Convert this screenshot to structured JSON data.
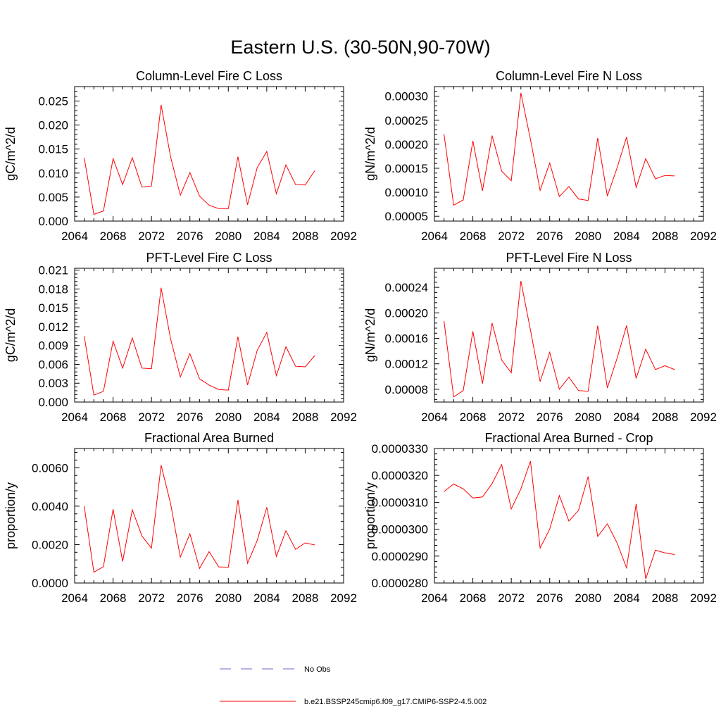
{
  "figure": {
    "title": "Eastern U.S. (30-50N,90-70W)",
    "line_color": "#ff0000",
    "obs_color": "#6a6ac8"
  },
  "legend": {
    "items": [
      {
        "label": "No Obs",
        "style": "dashed",
        "color": "#6a6ac8"
      },
      {
        "label": "b.e21.BSSP245cmip6.f09_g17.CMIP6-SSP2-4.5.002",
        "style": "solid",
        "color": "#ff0000"
      }
    ]
  },
  "chart_data": [
    {
      "type": "line",
      "title": "Column-Level Fire C Loss",
      "ylabel": "gC/m^2/d",
      "xlim": [
        2064,
        2092
      ],
      "ylim": [
        0.0,
        0.028
      ],
      "x_ticks": [
        2064,
        2068,
        2072,
        2076,
        2080,
        2084,
        2088,
        2092
      ],
      "y_ticks": [
        "0.000",
        "0.005",
        "0.010",
        "0.015",
        "0.020",
        "0.025"
      ],
      "y_tick_values": [
        0.0,
        0.005,
        0.01,
        0.015,
        0.02,
        0.025
      ],
      "x": [
        2065,
        2066,
        2067,
        2068,
        2069,
        2070,
        2071,
        2072,
        2073,
        2074,
        2075,
        2076,
        2077,
        2078,
        2079,
        2080,
        2081,
        2082,
        2083,
        2084,
        2085,
        2086,
        2087,
        2088,
        2089
      ],
      "series": [
        {
          "values": [
            0.0132,
            0.0014,
            0.0021,
            0.013,
            0.0076,
            0.0132,
            0.0071,
            0.0073,
            0.0242,
            0.0133,
            0.0054,
            0.0101,
            0.0052,
            0.0033,
            0.0026,
            0.0026,
            0.0134,
            0.0034,
            0.0111,
            0.0145,
            0.0057,
            0.0117,
            0.0076,
            0.0075,
            0.0105
          ]
        }
      ]
    },
    {
      "type": "line",
      "title": "Column-Level Fire N Loss",
      "ylabel": "gN/m^2/d",
      "xlim": [
        2064,
        2092
      ],
      "ylim": [
        4e-05,
        0.00032
      ],
      "x_ticks": [
        2064,
        2068,
        2072,
        2076,
        2080,
        2084,
        2088,
        2092
      ],
      "y_ticks": [
        "0.00005",
        "0.00010",
        "0.00015",
        "0.00020",
        "0.00025",
        "0.00030"
      ],
      "y_tick_values": [
        5e-05,
        0.0001,
        0.00015,
        0.0002,
        0.00025,
        0.0003
      ],
      "x": [
        2065,
        2066,
        2067,
        2068,
        2069,
        2070,
        2071,
        2072,
        2073,
        2074,
        2075,
        2076,
        2077,
        2078,
        2079,
        2080,
        2081,
        2082,
        2083,
        2084,
        2085,
        2086,
        2087,
        2088,
        2089
      ],
      "series": [
        {
          "values": [
            0.000221,
            7.3e-05,
            8.4e-05,
            0.000207,
            0.000103,
            0.000218,
            0.000144,
            0.000124,
            0.000307,
            0.00021,
            0.000104,
            0.000161,
            9.1e-05,
            0.000112,
            8.6e-05,
            8.3e-05,
            0.000213,
            9.2e-05,
            0.00015,
            0.000215,
            0.00011,
            0.00017,
            0.000128,
            0.000135,
            0.000134
          ]
        }
      ]
    },
    {
      "type": "line",
      "title": "PFT-Level Fire C Loss",
      "ylabel": "gC/m^2/d",
      "xlim": [
        2064,
        2092
      ],
      "ylim": [
        0.0,
        0.0213
      ],
      "x_ticks": [
        2064,
        2068,
        2072,
        2076,
        2080,
        2084,
        2088,
        2092
      ],
      "y_ticks": [
        "0.000",
        "0.003",
        "0.006",
        "0.009",
        "0.012",
        "0.015",
        "0.018",
        "0.021"
      ],
      "y_tick_values": [
        0.0,
        0.003,
        0.006,
        0.009,
        0.012,
        0.015,
        0.018,
        0.021
      ],
      "x": [
        2065,
        2066,
        2067,
        2068,
        2069,
        2070,
        2071,
        2072,
        2073,
        2074,
        2075,
        2076,
        2077,
        2078,
        2079,
        2080,
        2081,
        2082,
        2083,
        2084,
        2085,
        2086,
        2087,
        2088,
        2089
      ],
      "series": [
        {
          "values": [
            0.0105,
            0.0011,
            0.0017,
            0.0097,
            0.0054,
            0.0102,
            0.0054,
            0.0053,
            0.0182,
            0.01,
            0.004,
            0.0077,
            0.0037,
            0.0027,
            0.002,
            0.0019,
            0.0104,
            0.0027,
            0.0082,
            0.0111,
            0.0042,
            0.0088,
            0.0057,
            0.0056,
            0.0074
          ]
        }
      ]
    },
    {
      "type": "line",
      "title": "PFT-Level Fire N Loss",
      "ylabel": "gN/m^2/d",
      "xlim": [
        2064,
        2092
      ],
      "ylim": [
        6e-05,
        0.00027
      ],
      "x_ticks": [
        2064,
        2068,
        2072,
        2076,
        2080,
        2084,
        2088,
        2092
      ],
      "y_ticks": [
        "0.00008",
        "0.00012",
        "0.00016",
        "0.00020",
        "0.00024"
      ],
      "y_tick_values": [
        8e-05,
        0.00012,
        0.00016,
        0.0002,
        0.00024
      ],
      "x": [
        2065,
        2066,
        2067,
        2068,
        2069,
        2070,
        2071,
        2072,
        2073,
        2074,
        2075,
        2076,
        2077,
        2078,
        2079,
        2080,
        2081,
        2082,
        2083,
        2084,
        2085,
        2086,
        2087,
        2088,
        2089
      ],
      "series": [
        {
          "values": [
            0.000187,
            6.8e-05,
            7.8e-05,
            0.000171,
            8.9e-05,
            0.000184,
            0.000126,
            0.000106,
            0.00025,
            0.000173,
            9.2e-05,
            0.000138,
            8e-05,
            9.9e-05,
            7.8e-05,
            7.7e-05,
            0.00018,
            8.2e-05,
            0.000128,
            0.00018,
            9.7e-05,
            0.000143,
            0.000111,
            0.000117,
            0.000111
          ]
        }
      ]
    },
    {
      "type": "line",
      "title": "Fractional Area Burned",
      "ylabel": "proportion/y",
      "xlim": [
        2064,
        2092
      ],
      "ylim": [
        0.0,
        0.007
      ],
      "x_ticks": [
        2064,
        2068,
        2072,
        2076,
        2080,
        2084,
        2088,
        2092
      ],
      "y_ticks": [
        "0.0000",
        "0.0020",
        "0.0040",
        "0.0060"
      ],
      "y_tick_values": [
        0.0,
        0.002,
        0.004,
        0.006
      ],
      "x": [
        2065,
        2066,
        2067,
        2068,
        2069,
        2070,
        2071,
        2072,
        2073,
        2074,
        2075,
        2076,
        2077,
        2078,
        2079,
        2080,
        2081,
        2082,
        2083,
        2084,
        2085,
        2086,
        2087,
        2088,
        2089
      ],
      "series": [
        {
          "values": [
            0.004,
            0.00056,
            0.00085,
            0.00384,
            0.00112,
            0.00381,
            0.00245,
            0.00181,
            0.00614,
            0.00411,
            0.00134,
            0.00256,
            0.00076,
            0.00163,
            0.00084,
            0.00082,
            0.00432,
            0.00103,
            0.0022,
            0.00394,
            0.00138,
            0.00272,
            0.00175,
            0.00209,
            0.00198
          ]
        }
      ]
    },
    {
      "type": "line",
      "title": "Fractional Area Burned - Crop",
      "ylabel": "proportion/y",
      "xlim": [
        2064,
        2092
      ],
      "ylim": [
        2.8e-05,
        3.3e-05
      ],
      "x_ticks": [
        2064,
        2068,
        2072,
        2076,
        2080,
        2084,
        2088,
        2092
      ],
      "y_ticks": [
        "0.0000280",
        "0.0000290",
        "0.0000300",
        "0.0000310",
        "0.0000320",
        "0.0000330"
      ],
      "y_tick_values": [
        2.8e-05,
        2.9e-05,
        3e-05,
        3.1e-05,
        3.2e-05,
        3.3e-05
      ],
      "x": [
        2065,
        2066,
        2067,
        2068,
        2069,
        2070,
        2071,
        2072,
        2073,
        2074,
        2075,
        2076,
        2077,
        2078,
        2079,
        2080,
        2081,
        2082,
        2083,
        2084,
        2085,
        2086,
        2087,
        2088,
        2089
      ],
      "series": [
        {
          "values": [
            3.14e-05,
            3.168e-05,
            3.15e-05,
            3.116e-05,
            3.12e-05,
            3.17e-05,
            3.24e-05,
            3.075e-05,
            3.15e-05,
            3.253e-05,
            2.93e-05,
            3e-05,
            3.125e-05,
            3.03e-05,
            3.07e-05,
            3.196e-05,
            2.973e-05,
            3.02e-05,
            2.95e-05,
            2.856e-05,
            3.094e-05,
            2.815e-05,
            2.922e-05,
            2.912e-05,
            2.906e-05
          ]
        }
      ]
    }
  ]
}
